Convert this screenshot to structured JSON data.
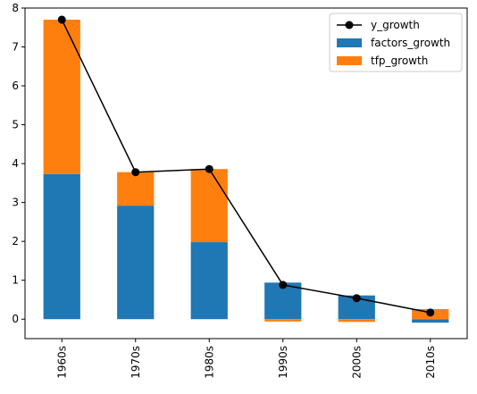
{
  "chart_data": {
    "type": "bar",
    "stacked": true,
    "categories": [
      "1960s",
      "1970s",
      "1980s",
      "1990s",
      "2000s",
      "2010s"
    ],
    "series": [
      {
        "name": "factors_growth",
        "kind": "bar",
        "color": "#1f77b4",
        "values": [
          3.73,
          2.92,
          1.98,
          0.94,
          0.61,
          -0.09
        ]
      },
      {
        "name": "tfp_growth",
        "kind": "bar",
        "color": "#ff7f0e",
        "values": [
          3.97,
          0.86,
          1.88,
          -0.06,
          -0.07,
          0.26
        ]
      },
      {
        "name": "y_growth",
        "kind": "line",
        "marker": "circle",
        "color": "#000000",
        "values": [
          7.7,
          3.78,
          3.86,
          0.88,
          0.54,
          0.17
        ]
      }
    ],
    "ylim": [
      -0.5,
      8.0
    ],
    "yticks": [
      0,
      1,
      2,
      3,
      4,
      5,
      6,
      7,
      8
    ],
    "xlabel": "",
    "ylabel": "",
    "title": "",
    "grid": false,
    "legend_position": "top-right",
    "legend_order": [
      "y_growth",
      "factors_growth",
      "tfp_growth"
    ],
    "xtick_rotation": "vertical"
  }
}
